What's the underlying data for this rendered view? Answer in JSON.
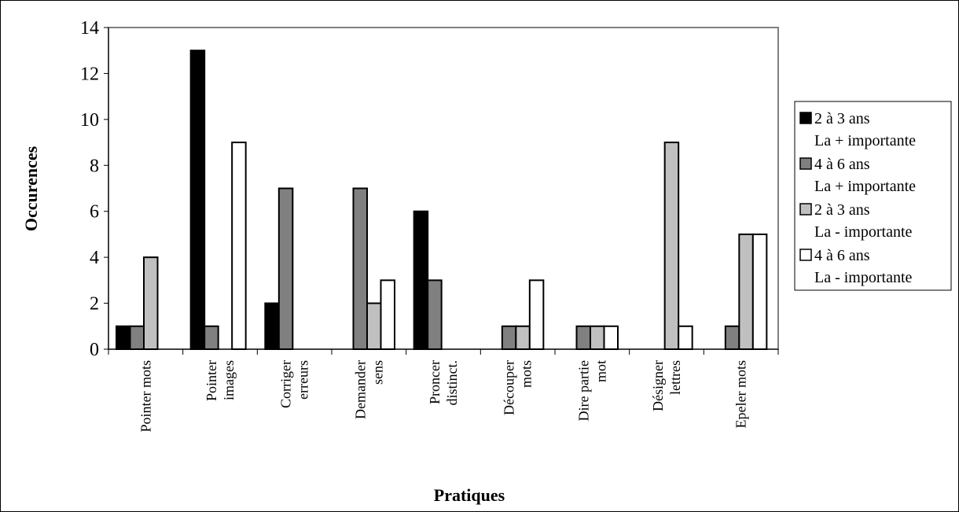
{
  "chart_data": {
    "type": "bar",
    "title": "",
    "xlabel": "Pratiques",
    "ylabel": "Occurences",
    "ylim": [
      0,
      14
    ],
    "yticks": [
      0,
      2,
      4,
      6,
      8,
      10,
      12,
      14
    ],
    "grid": false,
    "legend_position": "right",
    "categories": [
      [
        "Pointer mots"
      ],
      [
        "Pointer",
        "images"
      ],
      [
        "Corriger",
        "erreurs"
      ],
      [
        "Demander",
        "sens"
      ],
      [
        "Proncer",
        "distinct."
      ],
      [
        "Découper",
        "mots"
      ],
      [
        "Dire partie",
        "mot"
      ],
      [
        "Désigner",
        "lettres"
      ],
      [
        "Epeler mots"
      ]
    ],
    "series": [
      {
        "name": [
          "2 à 3 ans",
          "La + importante"
        ],
        "color": "#000000",
        "values": [
          1,
          13,
          2,
          0,
          6,
          0,
          0,
          0,
          0
        ]
      },
      {
        "name": [
          "4 à 6 ans",
          "La + importante"
        ],
        "color": "#808080",
        "values": [
          1,
          1,
          7,
          7,
          3,
          1,
          1,
          0,
          1
        ]
      },
      {
        "name": [
          "2 à 3 ans",
          "La - importante"
        ],
        "color": "#c0c0c0",
        "values": [
          4,
          0,
          0,
          2,
          0,
          1,
          1,
          9,
          5
        ]
      },
      {
        "name": [
          "4 à 6 ans",
          "La - importante"
        ],
        "color": "#ffffff",
        "values": [
          0,
          9,
          0,
          3,
          0,
          3,
          1,
          1,
          5
        ]
      }
    ]
  }
}
